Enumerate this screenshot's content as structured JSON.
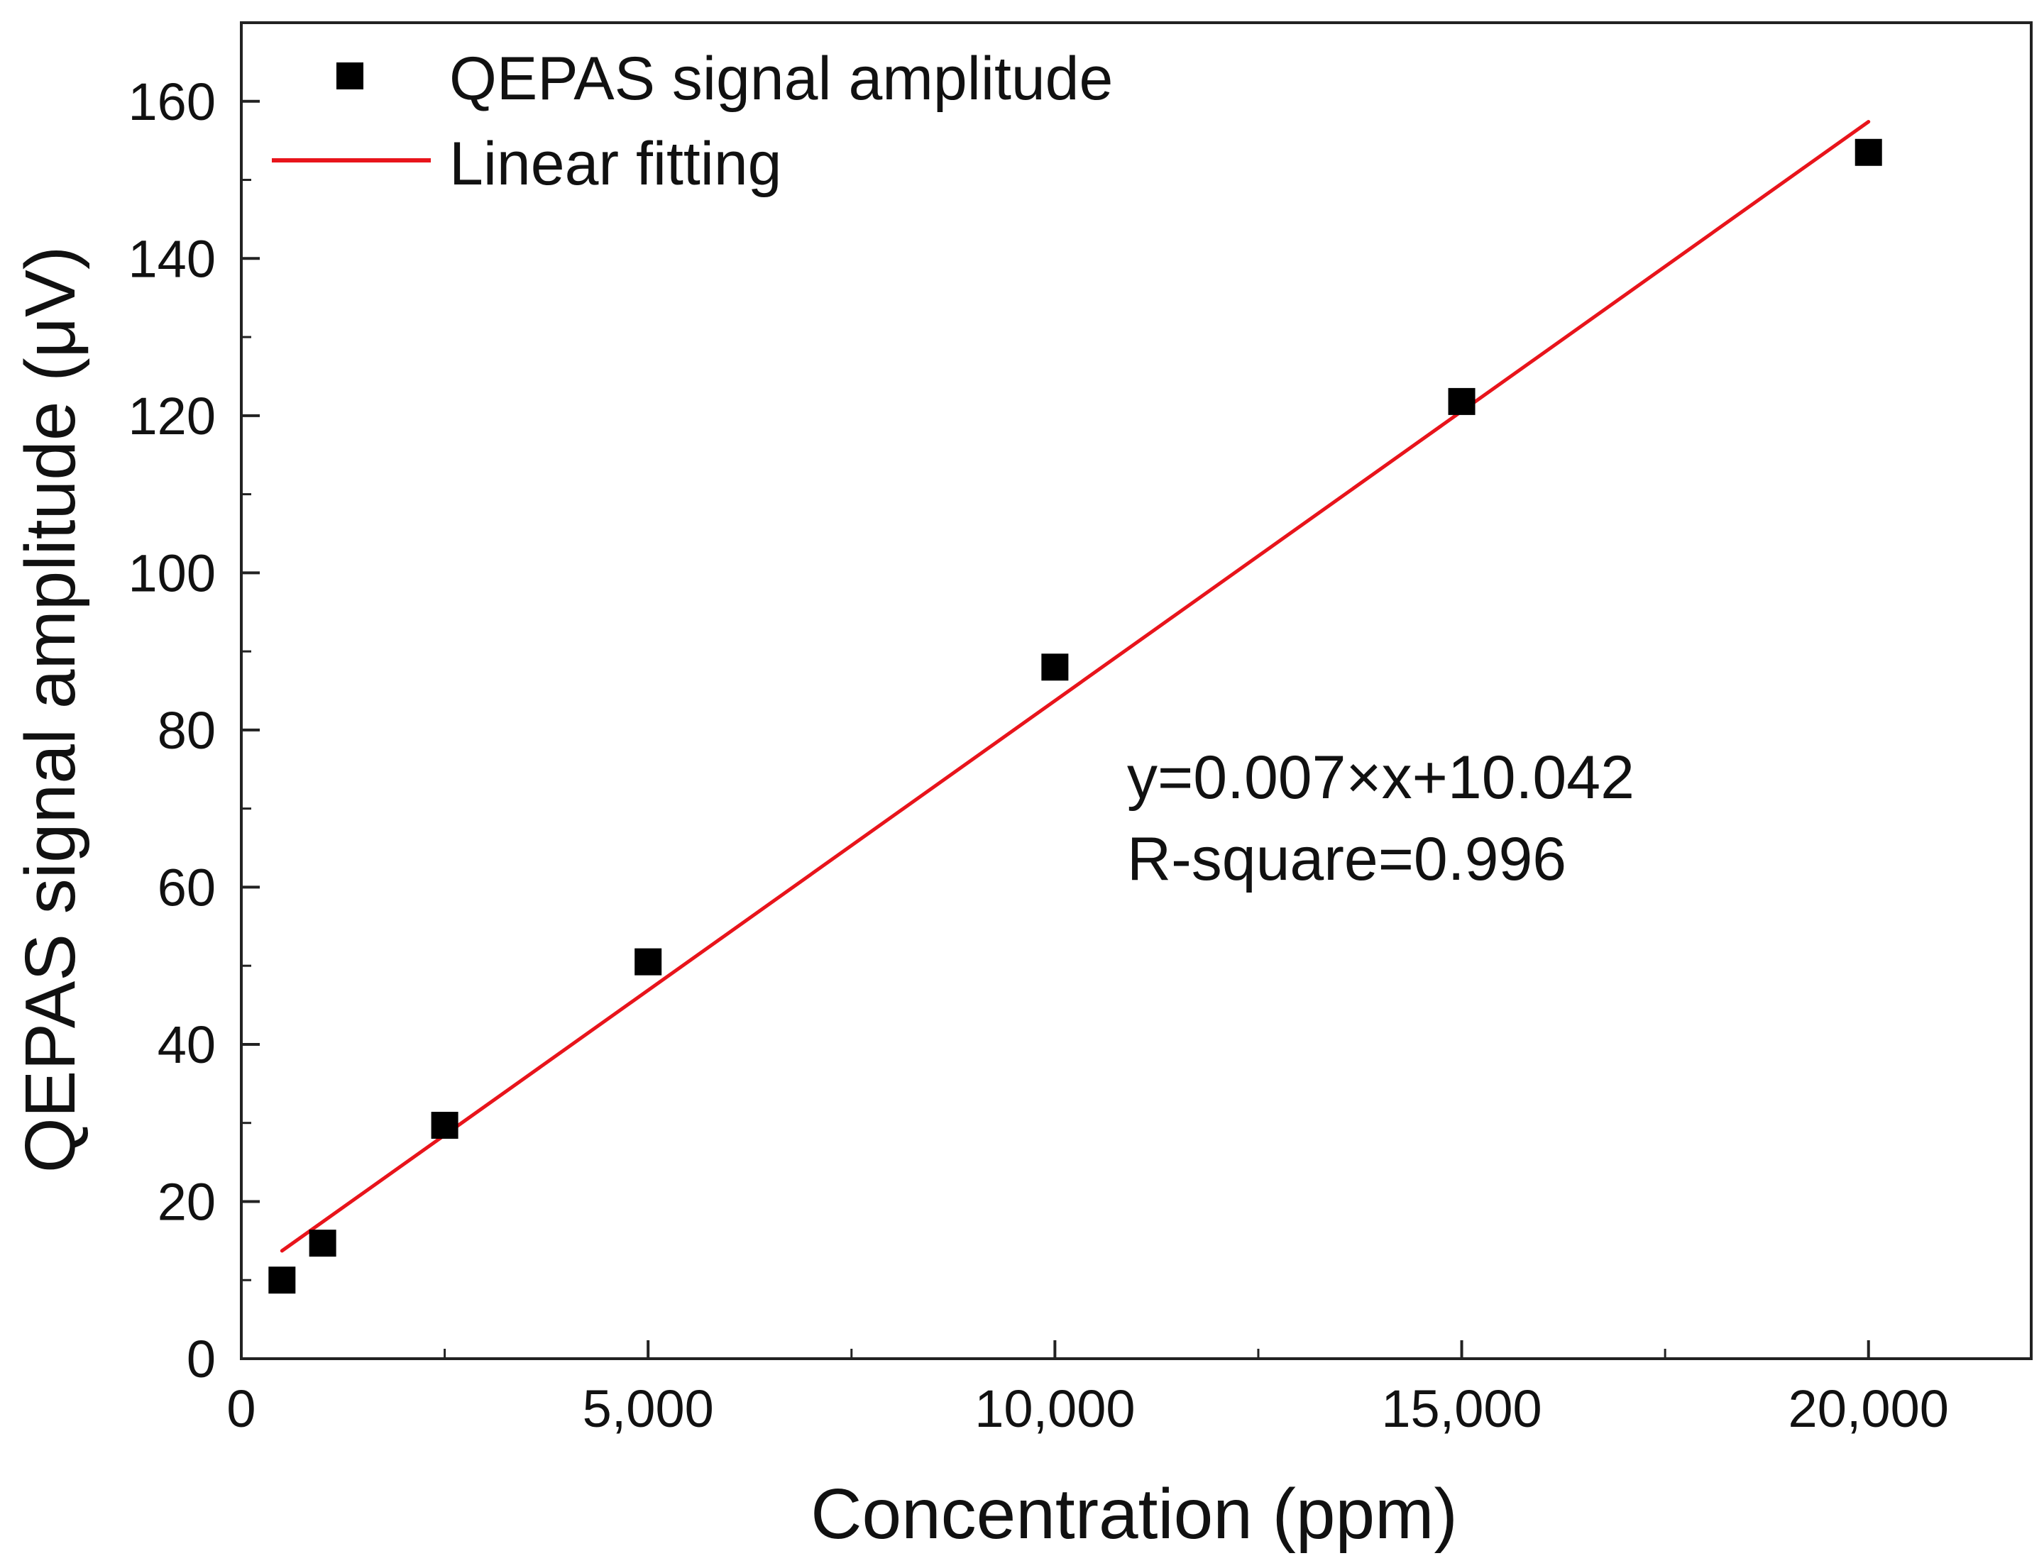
{
  "chart_data": {
    "type": "scatter",
    "title": "",
    "xlabel": "Concentration (ppm)",
    "ylabel": "QEPAS signal amplitude (μV)",
    "xlim": [
      0,
      22000
    ],
    "ylim": [
      0,
      170
    ],
    "x_ticks": [
      0,
      5000,
      10000,
      15000,
      20000
    ],
    "x_tick_labels": [
      "0",
      "5,000",
      "10,000",
      "15,000",
      "20,000"
    ],
    "x_minor_ticks": [
      2500,
      7500,
      12500,
      17500
    ],
    "y_ticks": [
      0,
      20,
      40,
      60,
      80,
      100,
      120,
      140,
      160
    ],
    "y_tick_labels": [
      "0",
      "20",
      "40",
      "60",
      "80",
      "100",
      "120",
      "140",
      "160"
    ],
    "y_minor_ticks": [
      10,
      30,
      50,
      70,
      90,
      110,
      130,
      150
    ],
    "grid": false,
    "series": [
      {
        "name": "QEPAS signal amplitude",
        "kind": "scatter",
        "marker": "square",
        "color": "#000000",
        "points": [
          {
            "x": 500,
            "y": 10.0
          },
          {
            "x": 1000,
            "y": 14.7
          },
          {
            "x": 2500,
            "y": 29.7
          },
          {
            "x": 5000,
            "y": 50.5
          },
          {
            "x": 10000,
            "y": 88.0
          },
          {
            "x": 15000,
            "y": 121.8
          },
          {
            "x": 20000,
            "y": 153.5
          }
        ]
      },
      {
        "name": "Linear fitting",
        "kind": "line",
        "color": "#e8141b",
        "slope": 0.007368,
        "intercept": 10.042,
        "x_range": [
          500,
          20000
        ]
      }
    ],
    "legend_position": "top-left",
    "annotations": [
      "y=0.007×x+10.042",
      "R-square=0.996"
    ]
  }
}
